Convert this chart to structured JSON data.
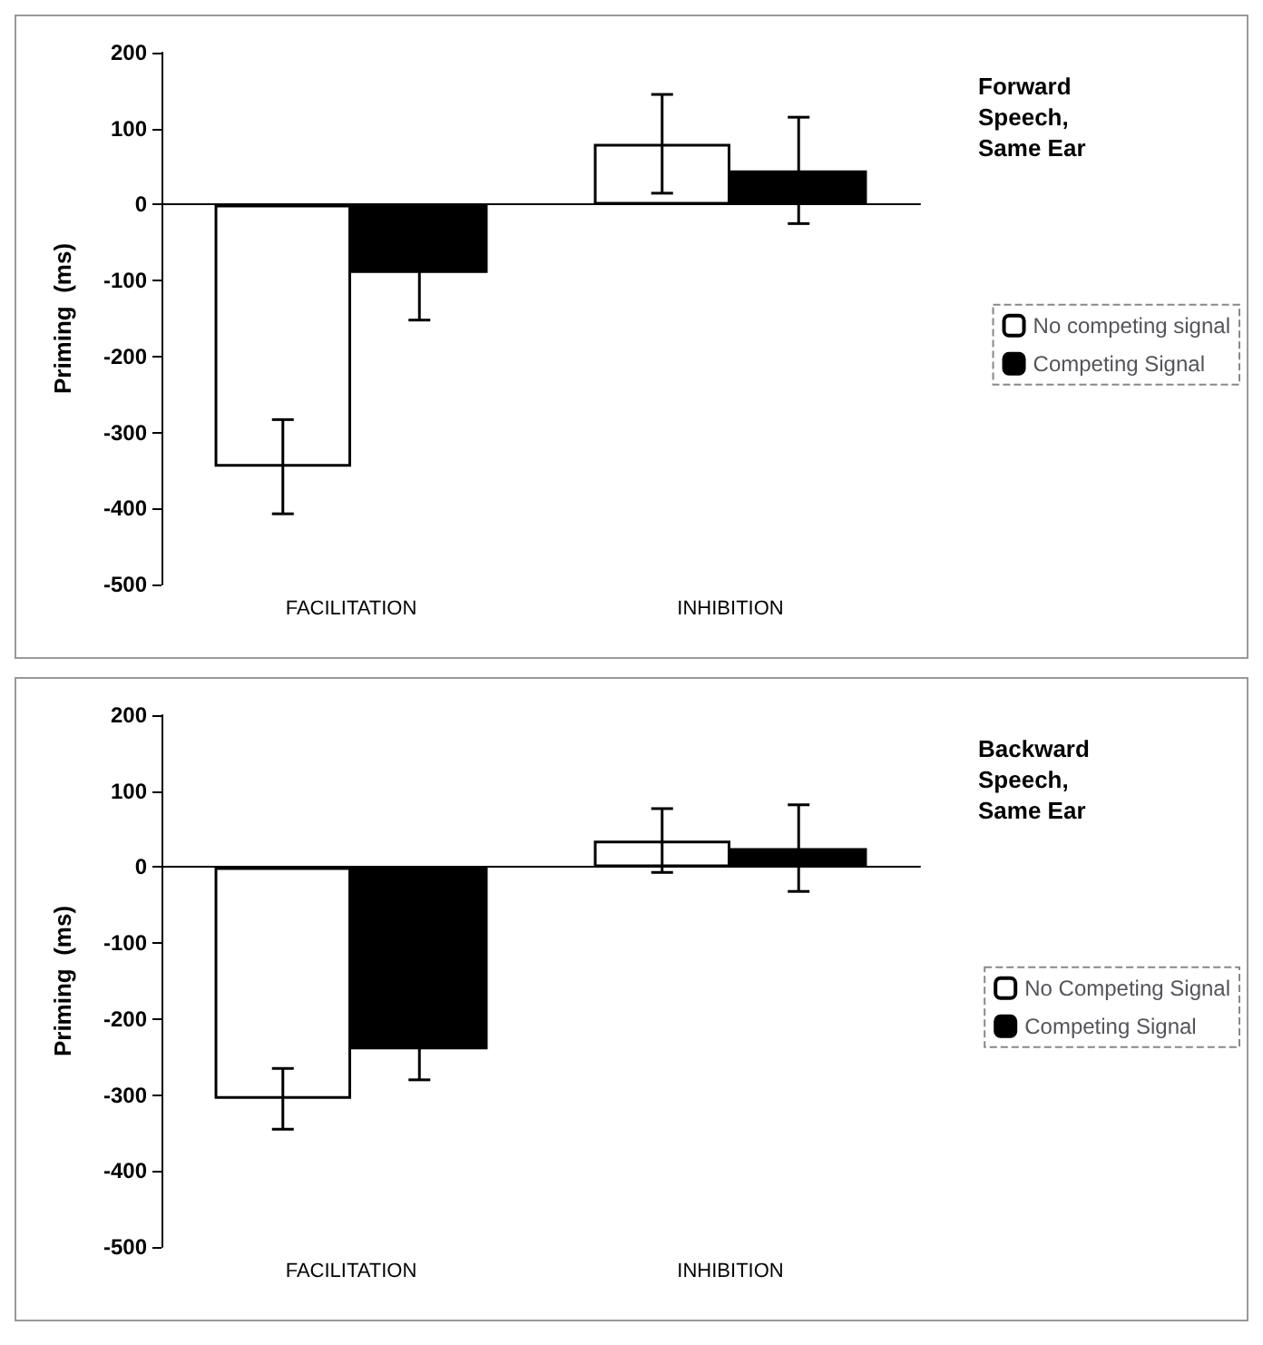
{
  "chart_data": [
    {
      "type": "bar",
      "annotations": [
        "Forward Speech, Same Ear"
      ],
      "ylabel": "Priming  (ms)",
      "categories": [
        "FACILITATION",
        "INHIBITION"
      ],
      "series": [
        {
          "name": "No competing signal",
          "color": "#ffffff",
          "values": [
            -345,
            80
          ],
          "errors": [
            62,
            65
          ]
        },
        {
          "name": "Competing Signal",
          "color": "#000000",
          "values": [
            -90,
            45
          ],
          "errors": [
            62,
            70
          ]
        }
      ],
      "ylim": [
        -500,
        200
      ],
      "yticks": [
        -500,
        -400,
        -300,
        -200,
        -100,
        0,
        100,
        200
      ],
      "legend": "right"
    },
    {
      "type": "bar",
      "annotations": [
        "Backward Speech, Same Ear"
      ],
      "ylabel": "Priming  (ms)",
      "categories": [
        "FACILITATION",
        "INHIBITION"
      ],
      "series": [
        {
          "name": "No Competing Signal",
          "color": "#ffffff",
          "values": [
            -305,
            35
          ],
          "errors": [
            40,
            42
          ]
        },
        {
          "name": "Competing Signal",
          "color": "#000000",
          "values": [
            -240,
            25
          ],
          "errors": [
            40,
            57
          ]
        }
      ],
      "ylim": [
        -500,
        200
      ],
      "yticks": [
        -500,
        -400,
        -300,
        -200,
        -100,
        0,
        100,
        200
      ],
      "legend": "right"
    }
  ]
}
